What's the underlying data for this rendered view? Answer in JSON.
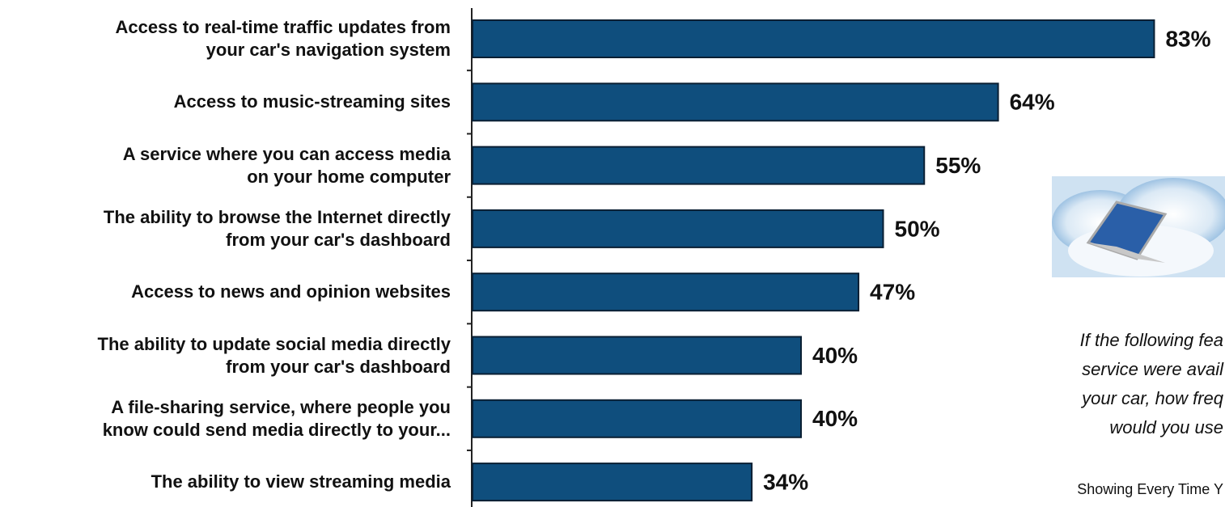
{
  "chart_data": {
    "type": "bar",
    "orientation": "horizontal",
    "categories": [
      "Access to real-time traffic updates from\nyour car's navigation system",
      "Access to music-streaming sites",
      "A service where you can access media\non your home computer",
      "The ability to browse the Internet directly\nfrom your car's dashboard",
      "Access to news and opinion websites",
      "The ability to update social media directly\nfrom your car's dashboard",
      "A file-sharing service, where people you\nknow could send media directly to your...",
      "The ability to view streaming media"
    ],
    "values": [
      83,
      64,
      55,
      50,
      47,
      40,
      40,
      34
    ],
    "value_labels": [
      "83%",
      "64%",
      "55%",
      "50%",
      "47%",
      "40%",
      "40%",
      "34%"
    ],
    "color": "#0f4e7d",
    "annotations": [
      "If the following fea",
      "service were avail",
      "your car, how freq",
      "would you use",
      "Showing Every Time Y"
    ]
  }
}
